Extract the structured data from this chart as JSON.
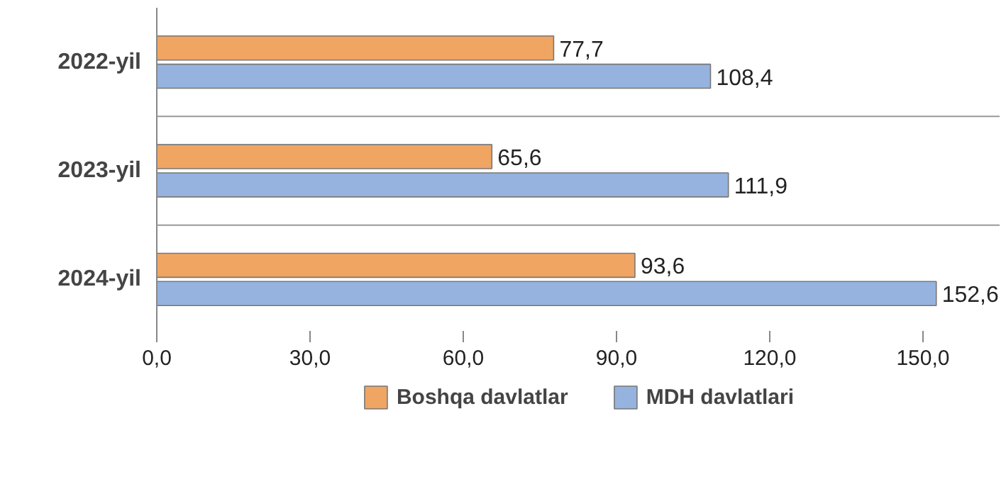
{
  "chart_data": {
    "type": "bar",
    "orientation": "horizontal",
    "categories": [
      "2022-yil",
      "2023-yil",
      "2024-yil"
    ],
    "series": [
      {
        "name": "Boshqa davlatlar",
        "color": "#f0a562",
        "values": [
          77.7,
          65.6,
          93.6
        ],
        "value_labels": [
          "77,7",
          "65,6",
          "93,6"
        ]
      },
      {
        "name": "MDH davlatlari",
        "color": "#95b3de",
        "values": [
          108.4,
          111.9,
          152.6
        ],
        "value_labels": [
          "108,4",
          "111,9",
          "152,6"
        ]
      }
    ],
    "xlim": [
      0,
      165
    ],
    "xticks": [
      {
        "value": 0,
        "label": "0,0"
      },
      {
        "value": 30,
        "label": "30,0"
      },
      {
        "value": 60,
        "label": "60,0"
      },
      {
        "value": 90,
        "label": "90,0"
      },
      {
        "value": 120,
        "label": "120,0"
      },
      {
        "value": 150,
        "label": "150,0"
      }
    ],
    "grid": "y",
    "legend": "bottom"
  }
}
